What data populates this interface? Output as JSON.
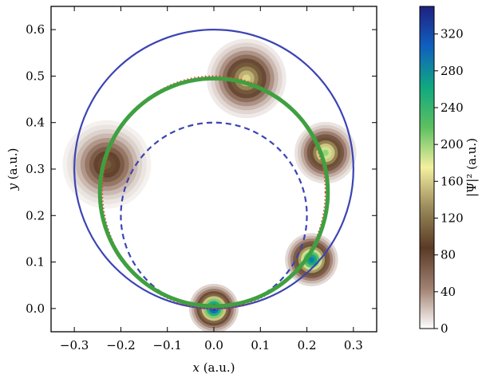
{
  "chart_data": {
    "type": "heatmap",
    "xlabel": "x (a.u.)",
    "ylabel": "y (a.u.)",
    "xlim": [
      -0.35,
      0.35
    ],
    "ylim": [
      -0.05,
      0.65
    ],
    "xticks": [
      -0.3,
      -0.2,
      -0.1,
      0.0,
      0.1,
      0.2,
      0.3
    ],
    "yticks": [
      0.0,
      0.1,
      0.2,
      0.3,
      0.4,
      0.5,
      0.6
    ],
    "xtick_labels": [
      "−0.3",
      "−0.2",
      "−0.1",
      "0.0",
      "0.1",
      "0.2",
      "0.3"
    ],
    "ytick_labels": [
      "0.0",
      "0.1",
      "0.2",
      "0.3",
      "0.4",
      "0.5",
      "0.6"
    ],
    "grid": false,
    "colorbar": {
      "label": "|Ψ|² (a.u.)",
      "range": [
        0,
        350
      ],
      "ticks": [
        0,
        40,
        80,
        120,
        160,
        200,
        240,
        280,
        320
      ],
      "tick_labels": [
        "0",
        "40",
        "80",
        "120",
        "160",
        "200",
        "240",
        "280",
        "320"
      ],
      "colormap_stops": [
        "#ffffff",
        "#a08070",
        "#5a3a25",
        "#9a8a5a",
        "#f4f0a0",
        "#5cc060",
        "#10a880",
        "#1060c0",
        "#202080"
      ]
    },
    "curves": [
      {
        "kind": "outer-circle",
        "style": "solid",
        "color": "#3c44b4",
        "center": [
          0.0,
          0.3
        ],
        "radius": 0.3
      },
      {
        "kind": "inner-circle",
        "style": "dashed",
        "color": "#3c44b4",
        "center": [
          0.0,
          0.2
        ],
        "radius": 0.2
      },
      {
        "kind": "path",
        "style": "dotted",
        "color": "#ff3030",
        "center": [
          0.0,
          0.25
        ],
        "radius_x": 0.24,
        "radius_y": 0.25
      },
      {
        "kind": "path",
        "style": "solid-thick",
        "color": "#3fa040",
        "center": [
          0.0,
          0.25
        ],
        "radius": 0.245
      }
    ],
    "blobs": [
      {
        "x": 0.0,
        "y": 0.0,
        "peak": 340,
        "spread": 0.028
      },
      {
        "x": 0.21,
        "y": 0.105,
        "peak": 300,
        "spread": 0.03
      },
      {
        "x": 0.24,
        "y": 0.335,
        "peak": 210,
        "spread": 0.035
      },
      {
        "x": 0.07,
        "y": 0.495,
        "peak": 170,
        "spread": 0.045
      },
      {
        "x": -0.23,
        "y": 0.31,
        "peak": 110,
        "spread": 0.05
      }
    ]
  }
}
